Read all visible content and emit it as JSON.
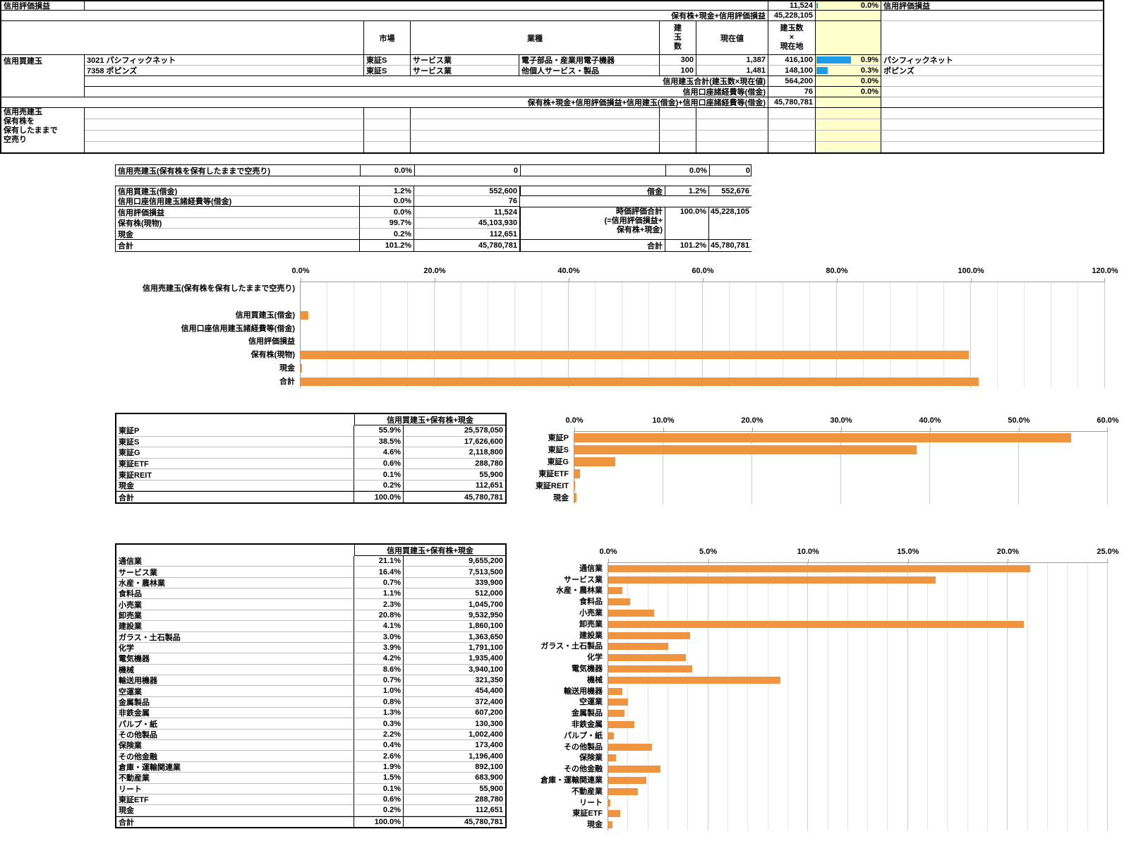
{
  "colors": {
    "bar_orange": "#F0953F",
    "data_bar_blue": "#1D9AE8",
    "cell_yellow": "#FFFFCC"
  },
  "top_table": {
    "header": {
      "market": "市場",
      "industry": "業種",
      "qty": "建\n玉\n数",
      "price": "現在値",
      "value": "建玉数\n×\n現在地"
    },
    "row1": {
      "label": "信用評価損益",
      "value": "11,524",
      "pct": "0.0%",
      "bar": 0.025,
      "name": "信用評価損益"
    },
    "row2": {
      "label": "保有株+現金+信用評価損益",
      "value": "45,228,105"
    },
    "section_label": "信用買建玉",
    "positions": [
      {
        "code": "3021 パシフィックネット",
        "market": "東証S",
        "industry": "サービス業",
        "subindustry": "電子部品・産業用電子機器",
        "qty": "300",
        "price": "1,387",
        "value": "416,100",
        "pct": "0.9%",
        "bar": 0.53,
        "name": "パシフィックネット"
      },
      {
        "code": "7358 ポピンズ",
        "market": "東証S",
        "industry": "サービス業",
        "subindustry": "他個人サービス・製品",
        "qty": "100",
        "price": "1,481",
        "value": "148,100",
        "pct": "0.3%",
        "bar": 0.175,
        "name": "ポピンズ"
      }
    ],
    "total": {
      "label": "信用建玉合計(建玉数×現在値)",
      "value": "564,200",
      "pct": "0.0%"
    },
    "fees": {
      "label": "信用口座諸経費等(借金)",
      "value": "76",
      "pct": "0.0%"
    },
    "grand": {
      "label": "保有株+現金+信用評価損益+信用建玉(借金)+信用口座諸経費等(借金)",
      "value": "45,780,781"
    },
    "short_label": "信用売建玉\n保有株を\n保有したままで\n空売り"
  },
  "short_row": {
    "label": "信用売建玉(保有株を保有したままで空売り)",
    "pct": "0.0%",
    "value": "0",
    "pct2": "0.0%",
    "value2": "0"
  },
  "summary_table": {
    "left": [
      {
        "label": "信用買建玉(借金)",
        "pct": "1.2%",
        "value": "552,600"
      },
      {
        "label": "信用口座信用建玉諸経費等(借金)",
        "pct": "0.0%",
        "value": "76"
      },
      {
        "label": "信用評価損益",
        "pct": "0.0%",
        "value": "11,524"
      },
      {
        "label": "保有株(現物)",
        "pct": "99.7%",
        "value": "45,103,930"
      },
      {
        "label": "現金",
        "pct": "0.2%",
        "value": "112,651"
      },
      {
        "label": "合計",
        "pct": "101.2%",
        "value": "45,780,781"
      }
    ],
    "right": {
      "debt": {
        "label": "借金",
        "pct": "1.2%",
        "value": "552,676"
      },
      "market_value": {
        "label": "時価評価合計\n(=信用評価損益+\n保有株+現金)",
        "pct": "100.0%",
        "value": "45,228,105"
      },
      "total": {
        "label": "合計",
        "pct": "101.2%",
        "value": "45,780,781"
      }
    }
  },
  "market_table": {
    "header": "信用買建玉+保有株+現金",
    "rows": [
      {
        "label": "東証P",
        "pct": "55.9%",
        "value": "25,578,050"
      },
      {
        "label": "東証S",
        "pct": "38.5%",
        "value": "17,626,600"
      },
      {
        "label": "東証G",
        "pct": "4.6%",
        "value": "2,118,800"
      },
      {
        "label": "東証ETF",
        "pct": "0.6%",
        "value": "288,780"
      },
      {
        "label": "東証REIT",
        "pct": "0.1%",
        "value": "55,900"
      },
      {
        "label": "現金",
        "pct": "0.2%",
        "value": "112,651"
      },
      {
        "label": "合計",
        "pct": "100.0%",
        "value": "45,780,781"
      }
    ]
  },
  "industry_table": {
    "header": "信用買建玉+保有株+現金",
    "rows": [
      {
        "label": "通信業",
        "pct": "21.1%",
        "value": "9,655,200"
      },
      {
        "label": "サービス業",
        "pct": "16.4%",
        "value": "7,513,500"
      },
      {
        "label": "水産・農林業",
        "pct": "0.7%",
        "value": "339,900"
      },
      {
        "label": "食料品",
        "pct": "1.1%",
        "value": "512,000"
      },
      {
        "label": "小売業",
        "pct": "2.3%",
        "value": "1,045,700"
      },
      {
        "label": "卸売業",
        "pct": "20.8%",
        "value": "9,532,950"
      },
      {
        "label": "建設業",
        "pct": "4.1%",
        "value": "1,860,100"
      },
      {
        "label": "ガラス・土石製品",
        "pct": "3.0%",
        "value": "1,363,650"
      },
      {
        "label": "化学",
        "pct": "3.9%",
        "value": "1,791,100"
      },
      {
        "label": "電気機器",
        "pct": "4.2%",
        "value": "1,935,400"
      },
      {
        "label": "機械",
        "pct": "8.6%",
        "value": "3,940,100"
      },
      {
        "label": "輸送用機器",
        "pct": "0.7%",
        "value": "321,350"
      },
      {
        "label": "空運業",
        "pct": "1.0%",
        "value": "454,400"
      },
      {
        "label": "金属製品",
        "pct": "0.8%",
        "value": "372,400"
      },
      {
        "label": "非鉄金属",
        "pct": "1.3%",
        "value": "607,200"
      },
      {
        "label": "パルプ・紙",
        "pct": "0.3%",
        "value": "130,300"
      },
      {
        "label": "その他製品",
        "pct": "2.2%",
        "value": "1,002,400"
      },
      {
        "label": "保険業",
        "pct": "0.4%",
        "value": "173,400"
      },
      {
        "label": "その他金融",
        "pct": "2.6%",
        "value": "1,196,400"
      },
      {
        "label": "倉庫・運輸関連業",
        "pct": "1.9%",
        "value": "892,100"
      },
      {
        "label": "不動産業",
        "pct": "1.5%",
        "value": "683,900"
      },
      {
        "label": "リート",
        "pct": "0.1%",
        "value": "55,900"
      },
      {
        "label": "東証ETF",
        "pct": "0.6%",
        "value": "288,780"
      },
      {
        "label": "現金",
        "pct": "0.2%",
        "value": "112,651"
      },
      {
        "label": "合計",
        "pct": "100.0%",
        "value": "45,780,781"
      }
    ]
  },
  "chart_data": [
    {
      "type": "bar",
      "orientation": "horizontal",
      "title": "",
      "xlabel": "",
      "ylabel": "",
      "categories": [
        "信用売建玉(保有株を保有したままで空売り)",
        "",
        "信用買建玉(借金)",
        "信用口座信用建玉諸経費等(借金)",
        "信用評価損益",
        "保有株(現物)",
        "現金",
        "合計"
      ],
      "values": [
        0,
        null,
        1.2,
        0,
        0,
        99.7,
        0.2,
        101.2
      ],
      "xlim": [
        0,
        120
      ],
      "major_step": 20,
      "minor_step": 4,
      "grid": true,
      "legend": "none",
      "x_ticks": [
        "0.0%",
        "20.0%",
        "40.0%",
        "60.0%",
        "80.0%",
        "100.0%",
        "120.0%"
      ]
    },
    {
      "type": "bar",
      "orientation": "horizontal",
      "title": "",
      "xlabel": "",
      "ylabel": "",
      "categories": [
        "東証P",
        "東証S",
        "東証G",
        "東証ETF",
        "東証REIT",
        "現金"
      ],
      "values": [
        55.9,
        38.5,
        4.6,
        0.6,
        0.1,
        0.2
      ],
      "xlim": [
        0,
        60
      ],
      "major_step": 10,
      "minor_step": null,
      "grid": true,
      "legend": "none",
      "x_ticks": [
        "0.0%",
        "10.0%",
        "20.0%",
        "30.0%",
        "40.0%",
        "50.0%",
        "60.0%"
      ]
    },
    {
      "type": "bar",
      "orientation": "horizontal",
      "title": "",
      "xlabel": "",
      "ylabel": "",
      "categories": [
        "通信業",
        "サービス業",
        "水産・農林業",
        "食料品",
        "小売業",
        "卸売業",
        "建設業",
        "ガラス・土石製品",
        "化学",
        "電気機器",
        "機械",
        "輸送用機器",
        "空運業",
        "金属製品",
        "非鉄金属",
        "パルプ・紙",
        "その他製品",
        "保険業",
        "その他金融",
        "倉庫・運輸関連業",
        "不動産業",
        "リート",
        "東証ETF",
        "現金"
      ],
      "values": [
        21.1,
        16.4,
        0.7,
        1.1,
        2.3,
        20.8,
        4.1,
        3.0,
        3.9,
        4.2,
        8.6,
        0.7,
        1.0,
        0.8,
        1.3,
        0.3,
        2.2,
        0.4,
        2.6,
        1.9,
        1.5,
        0.1,
        0.6,
        0.2
      ],
      "xlim": [
        0,
        25
      ],
      "major_step": 5,
      "minor_step": 1,
      "grid": true,
      "legend": "none",
      "x_ticks": [
        "0.0%",
        "5.0%",
        "10.0%",
        "15.0%",
        "20.0%",
        "25.0%"
      ]
    }
  ]
}
